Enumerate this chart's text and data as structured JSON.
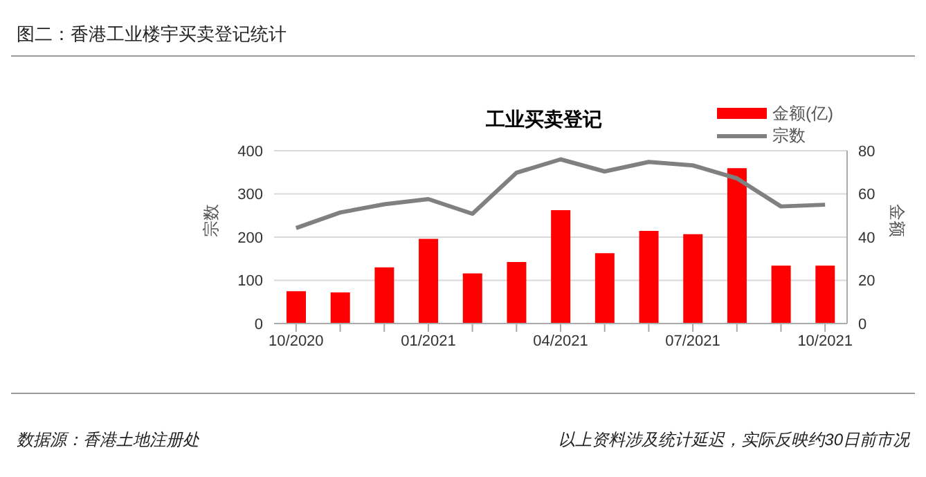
{
  "chart_data": {
    "type": "bar",
    "title": "图二：香港工业楼宇买卖登记统计",
    "subtitle": "工业买卖登记",
    "ylabel": "宗数",
    "y2label": "金额",
    "categories": [
      "10/2020",
      null,
      null,
      "01/2021",
      null,
      null,
      "04/2021",
      null,
      null,
      "07/2021",
      null,
      null,
      "10/2021"
    ],
    "series": [
      {
        "name": "金额(亿)",
        "axis": "y2",
        "color": "#ff0000",
        "values": [
          15,
          14.4,
          26,
          39.2,
          23.2,
          28.5,
          52.5,
          32.6,
          42.9,
          41.4,
          71.9,
          26.8,
          26.8
        ]
      },
      {
        "name": "宗数",
        "type": "line",
        "color": "#808080",
        "values": [
          221,
          257,
          276,
          288,
          254,
          349,
          380,
          352,
          374,
          366,
          336,
          271,
          275
        ]
      }
    ],
    "ylim": [
      0,
      400
    ],
    "yticks": [
      0,
      100,
      200,
      300,
      400
    ],
    "y2lim": [
      0,
      80
    ],
    "y2ticks": [
      0,
      20,
      40,
      60,
      80
    ],
    "grid": "y",
    "legend": "top right",
    "marker": "none",
    "annotations": [
      "数据源：香港土地注册处",
      "以上资料涉及统计延迟，实际反映约30日前市况"
    ]
  }
}
